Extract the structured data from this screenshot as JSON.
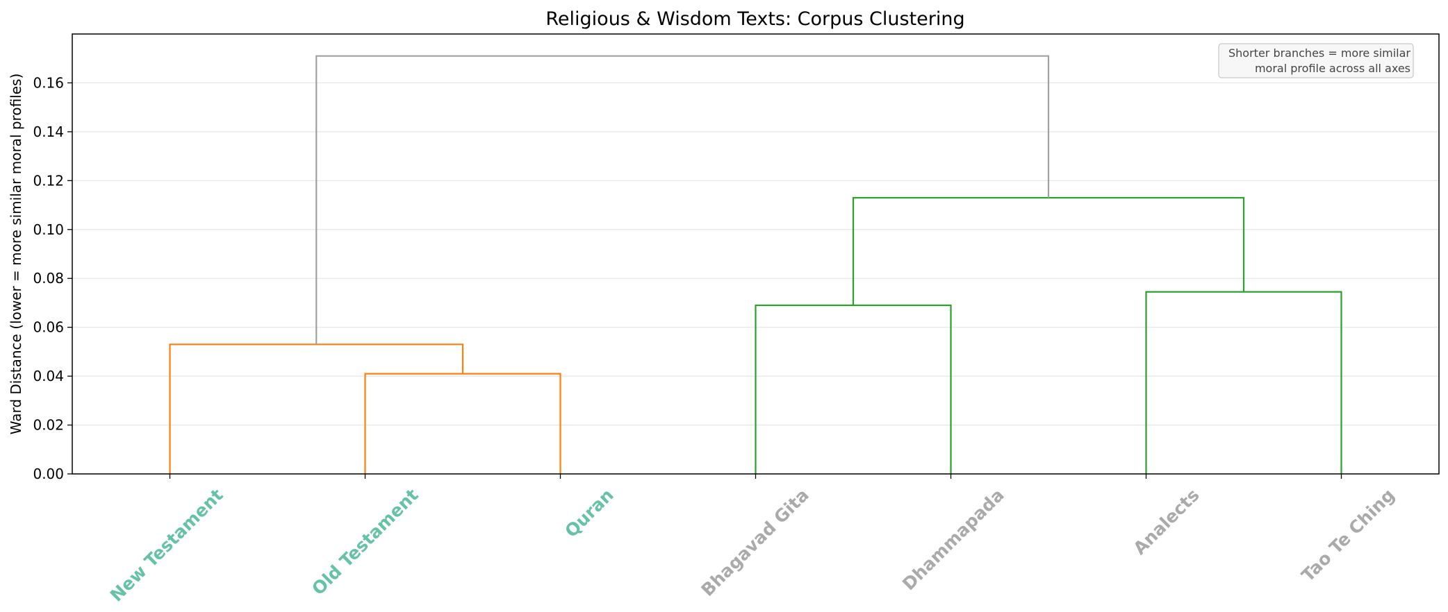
{
  "chart_data": {
    "type": "dendrogram",
    "title": "Religious & Wisdom Texts: Corpus Clustering",
    "ylabel": "Ward Distance (lower = more similar moral profiles)",
    "ylim": [
      0,
      0.18
    ],
    "yticks": [
      "0.00",
      "0.02",
      "0.04",
      "0.06",
      "0.08",
      "0.10",
      "0.12",
      "0.14",
      "0.16"
    ],
    "leaves": [
      {
        "label": "New Testament",
        "color": "#66c2a5"
      },
      {
        "label": "Old Testament",
        "color": "#66c2a5"
      },
      {
        "label": "Quran",
        "color": "#66c2a5"
      },
      {
        "label": "Bhagavad Gita",
        "color": "#aaaaaa"
      },
      {
        "label": "Dhammapada",
        "color": "#aaaaaa"
      },
      {
        "label": "Analects",
        "color": "#aaaaaa"
      },
      {
        "label": "Tao Te Ching",
        "color": "#aaaaaa"
      }
    ],
    "links": [
      {
        "left": "Old Testament",
        "right": "Quran",
        "height": 0.041,
        "color": "#ff7f0e"
      },
      {
        "left": "New Testament",
        "right": "Old Testament + Quran",
        "height": 0.053,
        "color": "#ff7f0e"
      },
      {
        "left": "Bhagavad Gita",
        "right": "Dhammapada",
        "height": 0.069,
        "color": "#2ca02c"
      },
      {
        "left": "Analects",
        "right": "Tao Te Ching",
        "height": 0.0745,
        "color": "#2ca02c"
      },
      {
        "left": "Bhagavad Gita + Dhammapada",
        "right": "Analects + Tao Te Ching",
        "height": 0.113,
        "color": "#2ca02c"
      },
      {
        "left": "Abrahamic cluster",
        "right": "Eastern cluster",
        "height": 0.171,
        "color": "#a0a0a0"
      }
    ],
    "annotation": [
      "Shorter branches = more similar",
      "moral profile across all axes"
    ],
    "grid": "y",
    "annotation_placement": "top-right"
  }
}
